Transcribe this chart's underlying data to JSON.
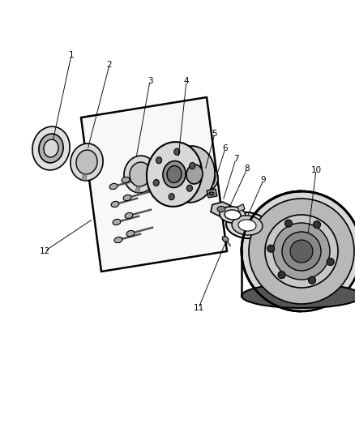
{
  "background_color": "#ffffff",
  "line_color": "#000000",
  "gray_fill": "#d0d0d0",
  "dark_fill": "#808080",
  "light_fill": "#f0f0f0",
  "annotations": [
    [
      "1",
      88,
      68,
      65,
      175
    ],
    [
      "2",
      135,
      80,
      108,
      185
    ],
    [
      "3",
      185,
      100,
      168,
      195
    ],
    [
      "4",
      230,
      100,
      220,
      195
    ],
    [
      "5",
      265,
      165,
      253,
      210
    ],
    [
      "6",
      278,
      183,
      263,
      230
    ],
    [
      "7",
      291,
      196,
      275,
      248
    ],
    [
      "8",
      305,
      208,
      282,
      258
    ],
    [
      "9",
      325,
      222,
      305,
      268
    ],
    [
      "10",
      390,
      210,
      380,
      290
    ],
    [
      "11",
      245,
      380,
      280,
      295
    ],
    [
      "12",
      55,
      310,
      115,
      270
    ]
  ]
}
